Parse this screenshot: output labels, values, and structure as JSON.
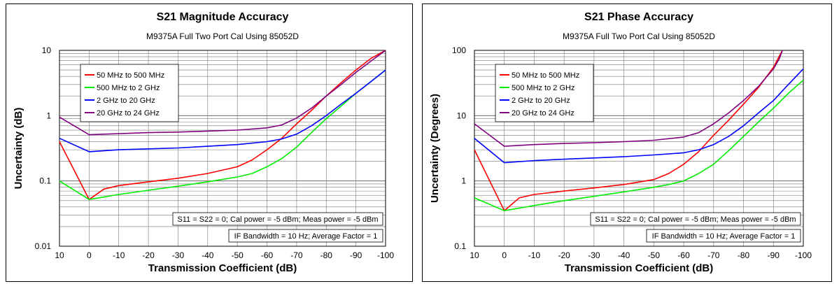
{
  "chart_data": [
    {
      "type": "line",
      "title": "S21 Magnitude Accuracy",
      "subtitle": "M9375A Full Two Port Cal Using 85052D",
      "xlabel": "Transmission Coefficient (dB)",
      "ylabel": "Uncertainty (dB)",
      "yscale": "log",
      "xlim": [
        10,
        -100
      ],
      "ylim": [
        0.01,
        10
      ],
      "xticks": [
        "10",
        "0",
        "-10",
        "-20",
        "-30",
        "-40",
        "-50",
        "-60",
        "-70",
        "-80",
        "-90",
        "-100"
      ],
      "yticks": [
        "0.01",
        "0.1",
        "1",
        "10"
      ],
      "grid": true,
      "legend_position": "top-left",
      "notes": [
        "S11 = S22 = 0; Cal power = -5 dBm; Meas power = -5 dBm",
        "IF Bandwidth = 10 Hz; Average Factor = 1"
      ],
      "series": [
        {
          "name": "50 MHz to 500 MHz",
          "color": "#ff0000",
          "x": [
            10,
            0,
            -5,
            -10,
            -20,
            -30,
            -40,
            -50,
            -55,
            -60,
            -65,
            -70,
            -75,
            -80,
            -85,
            -90,
            -95,
            -100
          ],
          "y": [
            0.4,
            0.052,
            0.075,
            0.085,
            0.097,
            0.11,
            0.13,
            0.165,
            0.21,
            0.3,
            0.45,
            0.75,
            1.2,
            2.0,
            3.2,
            5.0,
            7.5,
            10.5
          ]
        },
        {
          "name": "500 MHz to 2 GHz",
          "color": "#00ee00",
          "x": [
            10,
            0,
            -10,
            -20,
            -30,
            -40,
            -50,
            -55,
            -60,
            -65,
            -70,
            -75,
            -80,
            -85,
            -90,
            -95,
            -100
          ],
          "y": [
            0.1,
            0.052,
            0.062,
            0.072,
            0.083,
            0.097,
            0.115,
            0.13,
            0.165,
            0.22,
            0.33,
            0.55,
            0.9,
            1.4,
            2.2,
            3.3,
            5.0
          ]
        },
        {
          "name": "2 GHz to 20 GHz",
          "color": "#0000ff",
          "x": [
            10,
            0,
            -10,
            -20,
            -30,
            -40,
            -50,
            -60,
            -65,
            -70,
            -75,
            -80,
            -85,
            -90,
            -95,
            -100
          ],
          "y": [
            0.45,
            0.28,
            0.3,
            0.31,
            0.32,
            0.34,
            0.36,
            0.4,
            0.44,
            0.52,
            0.7,
            1.0,
            1.5,
            2.2,
            3.3,
            5.0
          ]
        },
        {
          "name": "20 GHz to 24 GHz",
          "color": "#800080",
          "x": [
            10,
            0,
            -10,
            -20,
            -30,
            -40,
            -50,
            -60,
            -65,
            -70,
            -75,
            -80,
            -85,
            -90,
            -95,
            -100
          ],
          "y": [
            0.95,
            0.51,
            0.53,
            0.55,
            0.56,
            0.58,
            0.6,
            0.65,
            0.72,
            0.92,
            1.3,
            2.0,
            3.0,
            4.6,
            6.8,
            10.5
          ]
        }
      ]
    },
    {
      "type": "line",
      "title": "S21 Phase Accuracy",
      "subtitle": "M9375A Full Two Port Cal Using 85052D",
      "xlabel": "Transmission Coefficient (dB)",
      "ylabel": "Uncertainty (Degrees)",
      "yscale": "log",
      "xlim": [
        10,
        -100
      ],
      "ylim": [
        0.1,
        100
      ],
      "xticks": [
        "10",
        "0",
        "-10",
        "-20",
        "-30",
        "-40",
        "-50",
        "-60",
        "-70",
        "-80",
        "-90",
        "-100"
      ],
      "yticks": [
        "0.1",
        "1",
        "10",
        "100"
      ],
      "grid": true,
      "legend_position": "top-left",
      "notes": [
        "S11 = S22 = 0; Cal power = -5 dBm; Meas power = -5 dBm",
        "IF Bandwidth = 10 Hz; Average Factor = 1"
      ],
      "series": [
        {
          "name": "50 MHz to 500 MHz",
          "color": "#ff0000",
          "x": [
            10,
            0,
            -5,
            -10,
            -20,
            -30,
            -40,
            -50,
            -55,
            -60,
            -65,
            -70,
            -75,
            -80,
            -85,
            -90,
            -93
          ],
          "y": [
            3.0,
            0.35,
            0.55,
            0.62,
            0.7,
            0.78,
            0.88,
            1.05,
            1.3,
            1.8,
            2.8,
            5.0,
            8.5,
            15,
            27,
            55,
            100
          ]
        },
        {
          "name": "500 MHz to 2 GHz",
          "color": "#00ee00",
          "x": [
            10,
            0,
            -10,
            -20,
            -30,
            -40,
            -50,
            -55,
            -60,
            -65,
            -70,
            -75,
            -80,
            -85,
            -90,
            -95,
            -100
          ],
          "y": [
            0.55,
            0.35,
            0.42,
            0.5,
            0.58,
            0.68,
            0.8,
            0.88,
            1.0,
            1.3,
            1.8,
            2.9,
            4.8,
            8.0,
            13,
            22,
            35
          ]
        },
        {
          "name": "2 GHz to 20 GHz",
          "color": "#0000ff",
          "x": [
            10,
            0,
            -10,
            -20,
            -30,
            -40,
            -50,
            -60,
            -65,
            -70,
            -75,
            -80,
            -85,
            -90,
            -95,
            -100
          ],
          "y": [
            4.5,
            1.9,
            2.05,
            2.15,
            2.25,
            2.35,
            2.5,
            2.7,
            3.0,
            3.6,
            4.8,
            7.0,
            11,
            17,
            30,
            52
          ]
        },
        {
          "name": "20 GHz to 24 GHz",
          "color": "#800080",
          "x": [
            10,
            0,
            -10,
            -20,
            -30,
            -40,
            -50,
            -60,
            -65,
            -70,
            -75,
            -80,
            -85,
            -90,
            -92,
            -93
          ],
          "y": [
            7.5,
            3.4,
            3.6,
            3.75,
            3.85,
            4.0,
            4.2,
            4.7,
            5.5,
            7.5,
            11,
            17,
            28,
            52,
            75,
            100
          ]
        }
      ]
    }
  ]
}
